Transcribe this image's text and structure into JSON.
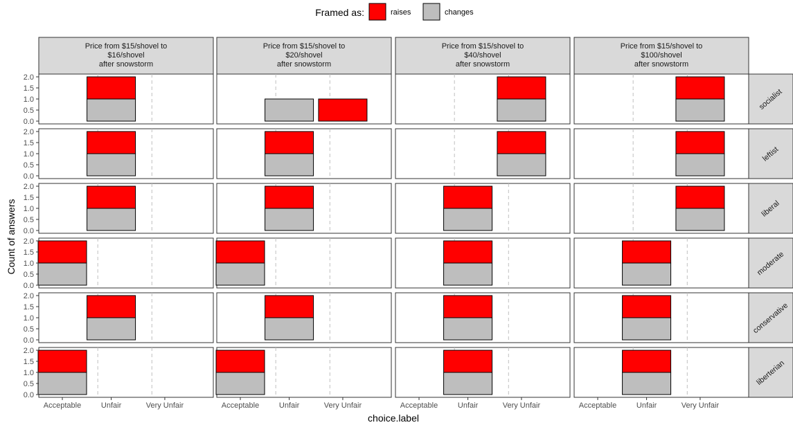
{
  "chart_data": {
    "type": "bar",
    "stacked": true,
    "facet_layout": "grid",
    "xlabel": "choice.label",
    "ylabel": "Count of answers",
    "categories": [
      "Acceptable",
      "Unfair",
      "Very Unfair"
    ],
    "ylim": [
      0,
      2
    ],
    "yticks": [
      "0.0",
      "0.5",
      "1.0",
      "1.5",
      "2.0"
    ],
    "legend": {
      "title": "Framed as:",
      "position": "top",
      "entries": [
        {
          "label": "raises",
          "color": "#ff0000"
        },
        {
          "label": "changes",
          "color": "#bebebe"
        }
      ]
    },
    "columns": [
      {
        "title_lines": [
          "Price from $15/shovel to",
          "$16/shovel",
          "after snowstorm"
        ]
      },
      {
        "title_lines": [
          "Price from $15/shovel to",
          "$20/shovel",
          "after snowstorm"
        ]
      },
      {
        "title_lines": [
          "Price from $15/shovel to",
          "$40/shovel",
          "after snowstorm"
        ]
      },
      {
        "title_lines": [
          "Price from $15/shovel to",
          "$100/shovel",
          "after snowstorm"
        ]
      }
    ],
    "rows": [
      "socialist",
      "leftist",
      "liberal",
      "moderate",
      "conservative",
      "liberterian"
    ],
    "cells": [
      [
        [
          {
            "category": "Unfair",
            "changes": 1,
            "raises": 1
          }
        ],
        [
          {
            "category": "Unfair",
            "changes": 1,
            "raises": 0
          },
          {
            "category": "Very Unfair",
            "changes": 0,
            "raises": 1
          }
        ],
        [
          {
            "category": "Very Unfair",
            "changes": 1,
            "raises": 1
          }
        ],
        [
          {
            "category": "Very Unfair",
            "changes": 1,
            "raises": 1
          }
        ]
      ],
      [
        [
          {
            "category": "Unfair",
            "changes": 1,
            "raises": 1
          }
        ],
        [
          {
            "category": "Unfair",
            "changes": 1,
            "raises": 1
          }
        ],
        [
          {
            "category": "Very Unfair",
            "changes": 1,
            "raises": 1
          }
        ],
        [
          {
            "category": "Very Unfair",
            "changes": 1,
            "raises": 1
          }
        ]
      ],
      [
        [
          {
            "category": "Unfair",
            "changes": 1,
            "raises": 1
          }
        ],
        [
          {
            "category": "Unfair",
            "changes": 1,
            "raises": 1
          }
        ],
        [
          {
            "category": "Unfair",
            "changes": 1,
            "raises": 1
          }
        ],
        [
          {
            "category": "Very Unfair",
            "changes": 1,
            "raises": 1
          }
        ]
      ],
      [
        [
          {
            "category": "Acceptable",
            "changes": 1,
            "raises": 1
          }
        ],
        [
          {
            "category": "Acceptable",
            "changes": 1,
            "raises": 1
          }
        ],
        [
          {
            "category": "Unfair",
            "changes": 1,
            "raises": 1
          }
        ],
        [
          {
            "category": "Unfair",
            "changes": 1,
            "raises": 1
          }
        ]
      ],
      [
        [
          {
            "category": "Unfair",
            "changes": 1,
            "raises": 1
          }
        ],
        [
          {
            "category": "Unfair",
            "changes": 1,
            "raises": 1
          }
        ],
        [
          {
            "category": "Unfair",
            "changes": 1,
            "raises": 1
          }
        ],
        [
          {
            "category": "Unfair",
            "changes": 1,
            "raises": 1
          }
        ]
      ],
      [
        [
          {
            "category": "Acceptable",
            "changes": 1,
            "raises": 1
          }
        ],
        [
          {
            "category": "Acceptable",
            "changes": 1,
            "raises": 1
          }
        ],
        [
          {
            "category": "Unfair",
            "changes": 1,
            "raises": 1
          }
        ],
        [
          {
            "category": "Unfair",
            "changes": 1,
            "raises": 1
          }
        ]
      ]
    ],
    "colors": {
      "raises": "#ff0000",
      "changes": "#bebebe",
      "strip_bg": "#d9d9d9",
      "divider": "#bfbfbf"
    },
    "grid": false
  }
}
